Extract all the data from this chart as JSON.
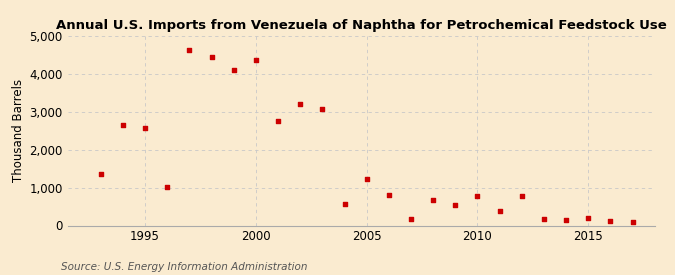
{
  "title": "Annual U.S. Imports from Venezuela of Naphtha for Petrochemical Feedstock Use",
  "ylabel": "Thousand Barrels",
  "source": "Source: U.S. Energy Information Administration",
  "background_color": "#faebd0",
  "plot_bg_color": "#faebd0",
  "marker_color": "#cc0000",
  "years": [
    1993,
    1994,
    1995,
    1996,
    1997,
    1998,
    1999,
    2000,
    2001,
    2002,
    2003,
    2004,
    2005,
    2006,
    2007,
    2008,
    2009,
    2010,
    2011,
    2012,
    2013,
    2014,
    2015,
    2016,
    2017
  ],
  "values": [
    1350,
    2650,
    2570,
    1020,
    4620,
    4450,
    4100,
    4350,
    2750,
    3200,
    3080,
    560,
    1220,
    800,
    175,
    660,
    540,
    780,
    380,
    780,
    175,
    155,
    200,
    120,
    100
  ],
  "ylim": [
    0,
    5000
  ],
  "yticks": [
    0,
    1000,
    2000,
    3000,
    4000,
    5000
  ],
  "xticks": [
    1995,
    2000,
    2005,
    2010,
    2015
  ],
  "xlim": [
    1991.5,
    2018
  ],
  "grid_color": "#c8c8c8",
  "title_fontsize": 9.5,
  "axis_fontsize": 8.5,
  "source_fontsize": 7.5
}
